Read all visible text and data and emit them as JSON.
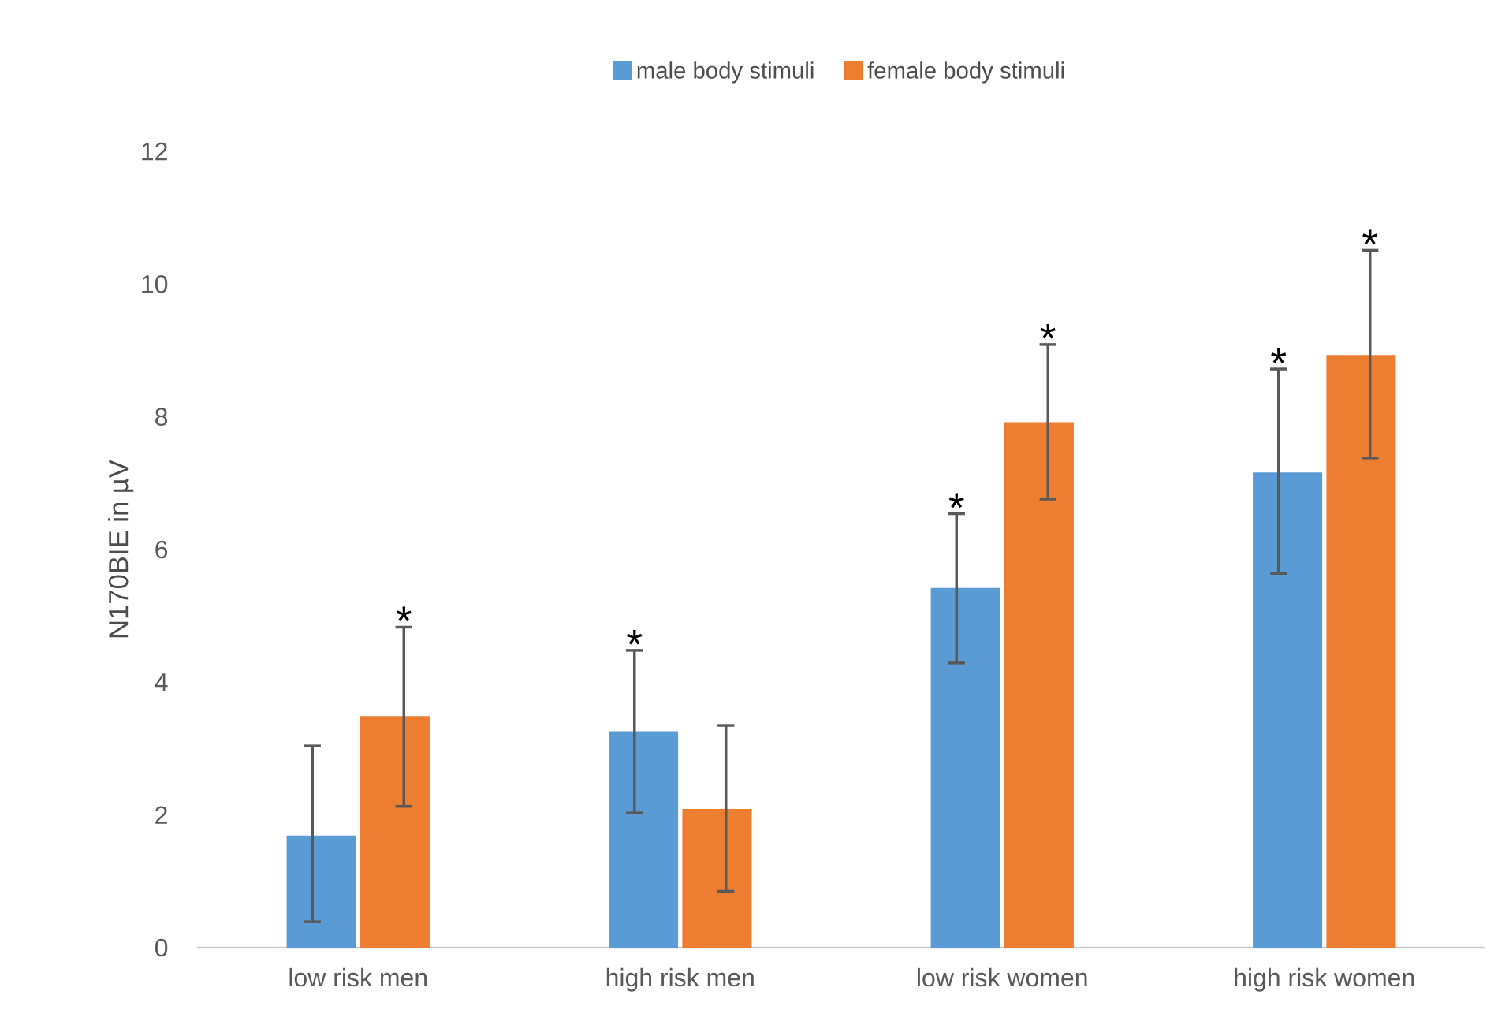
{
  "chart_data": {
    "type": "bar",
    "ylabel": "N170BIE in µV",
    "categories": [
      "low risk men",
      "high risk men",
      "low risk women",
      "high risk women"
    ],
    "series": [
      {
        "name": "male body stimuli",
        "color": "#5b9bd5",
        "values": [
          1.69,
          3.26,
          5.42,
          7.16
        ],
        "errors": [
          [
            0.39,
            3.04
          ],
          [
            2.03,
            4.48
          ],
          [
            4.29,
            6.54
          ],
          [
            5.64,
            8.72
          ]
        ],
        "value_labels": [
          null,
          "*",
          "*",
          "*"
        ]
      },
      {
        "name": "female body stimuli",
        "color": "#ed7d31",
        "values": [
          3.49,
          2.09,
          7.92,
          8.93
        ],
        "errors": [
          [
            2.13,
            4.83
          ],
          [
            0.85,
            3.35
          ],
          [
            6.76,
            9.09
          ],
          [
            7.38,
            10.51
          ]
        ],
        "value_labels": [
          "*",
          null,
          "*",
          "*"
        ]
      }
    ],
    "ylim": [
      0,
      12
    ],
    "yticks": [
      0,
      2,
      4,
      6,
      8,
      10,
      12
    ],
    "grid": false,
    "legend": "top"
  }
}
